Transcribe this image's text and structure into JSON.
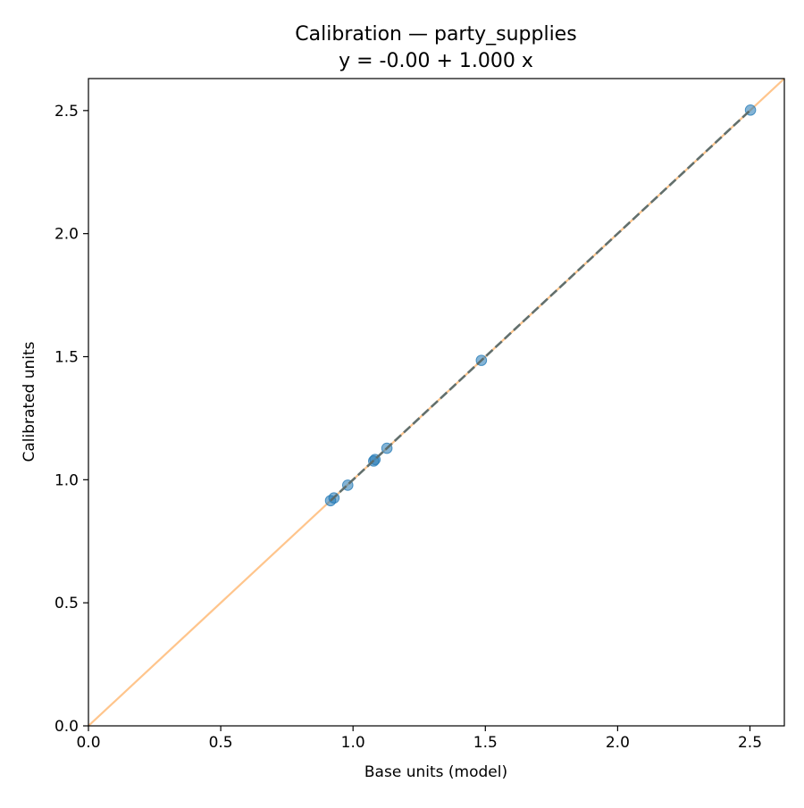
{
  "chart_data": {
    "type": "scatter",
    "title": "Calibration — party_supplies",
    "subtitle": "y = -0.00 + 1.000 x",
    "xlabel": "Base units (model)",
    "ylabel": "Calibrated units",
    "xlim": [
      0.0,
      2.63
    ],
    "ylim": [
      0.0,
      2.63
    ],
    "xticks": [
      "0.0",
      "0.5",
      "1.0",
      "1.5",
      "2.0",
      "2.5"
    ],
    "yticks": [
      "0.0",
      "0.5",
      "1.0",
      "1.5",
      "2.0",
      "2.5"
    ],
    "grid": false,
    "series": [
      {
        "kind": "points",
        "color": "#1f77b4",
        "points": [
          {
            "x": 0.915,
            "y": 0.915
          },
          {
            "x": 0.928,
            "y": 0.926
          },
          {
            "x": 0.98,
            "y": 0.978
          },
          {
            "x": 1.078,
            "y": 1.076
          },
          {
            "x": 1.083,
            "y": 1.082
          },
          {
            "x": 1.128,
            "y": 1.128
          },
          {
            "x": 1.485,
            "y": 1.485
          },
          {
            "x": 2.502,
            "y": 2.502
          }
        ]
      },
      {
        "kind": "reference-line",
        "color": "#ffbb78",
        "intercept": 0.0,
        "slope": 1.0,
        "x_range": [
          0.0,
          2.63
        ]
      },
      {
        "kind": "fit-line",
        "color": "#5a6a6a",
        "style": "dashed",
        "intercept": 0.0,
        "slope": 1.0,
        "x_range": [
          0.915,
          2.502
        ]
      }
    ]
  }
}
